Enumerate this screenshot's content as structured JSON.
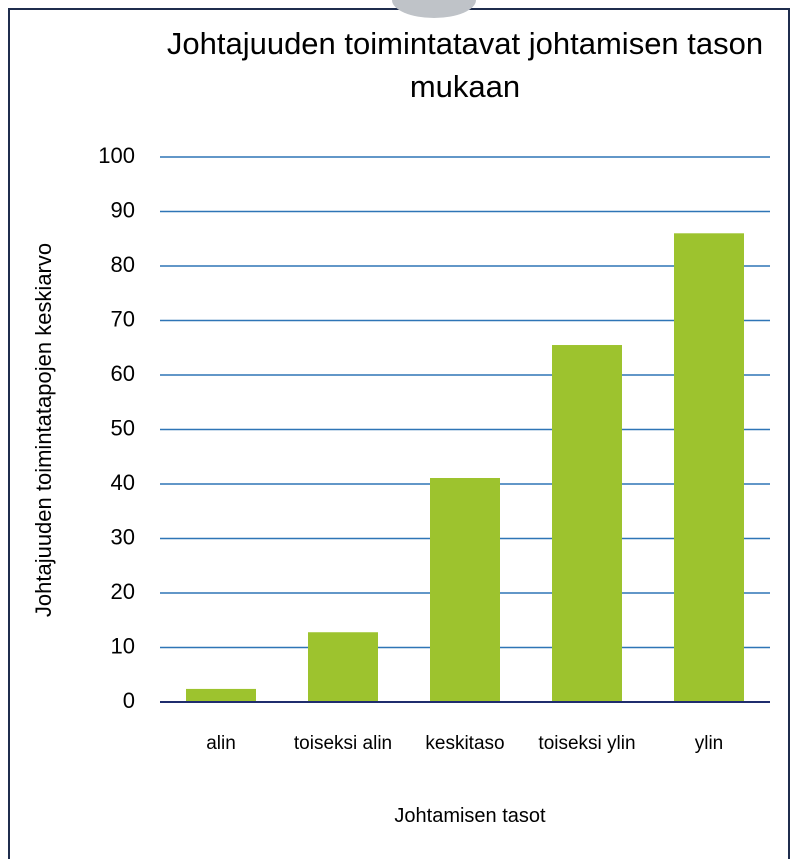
{
  "chart_data": {
    "type": "bar",
    "title": "Johtajuuden toimintatavat johtamisen tason mukaan",
    "xlabel": "Johtamisen tasot",
    "ylabel": "Johtajuuden toimintatapojen keskiarvo",
    "categories": [
      "alin",
      "toiseksi alin",
      "keskitaso",
      "toiseksi ylin",
      "ylin"
    ],
    "values": [
      2.4,
      12.8,
      41.1,
      65.5,
      86
    ],
    "color": "#9dc32e",
    "ylim": [
      0,
      100
    ],
    "yticks": [
      0,
      10,
      20,
      30,
      40,
      50,
      60,
      70,
      80,
      90,
      100
    ],
    "grid": true
  }
}
